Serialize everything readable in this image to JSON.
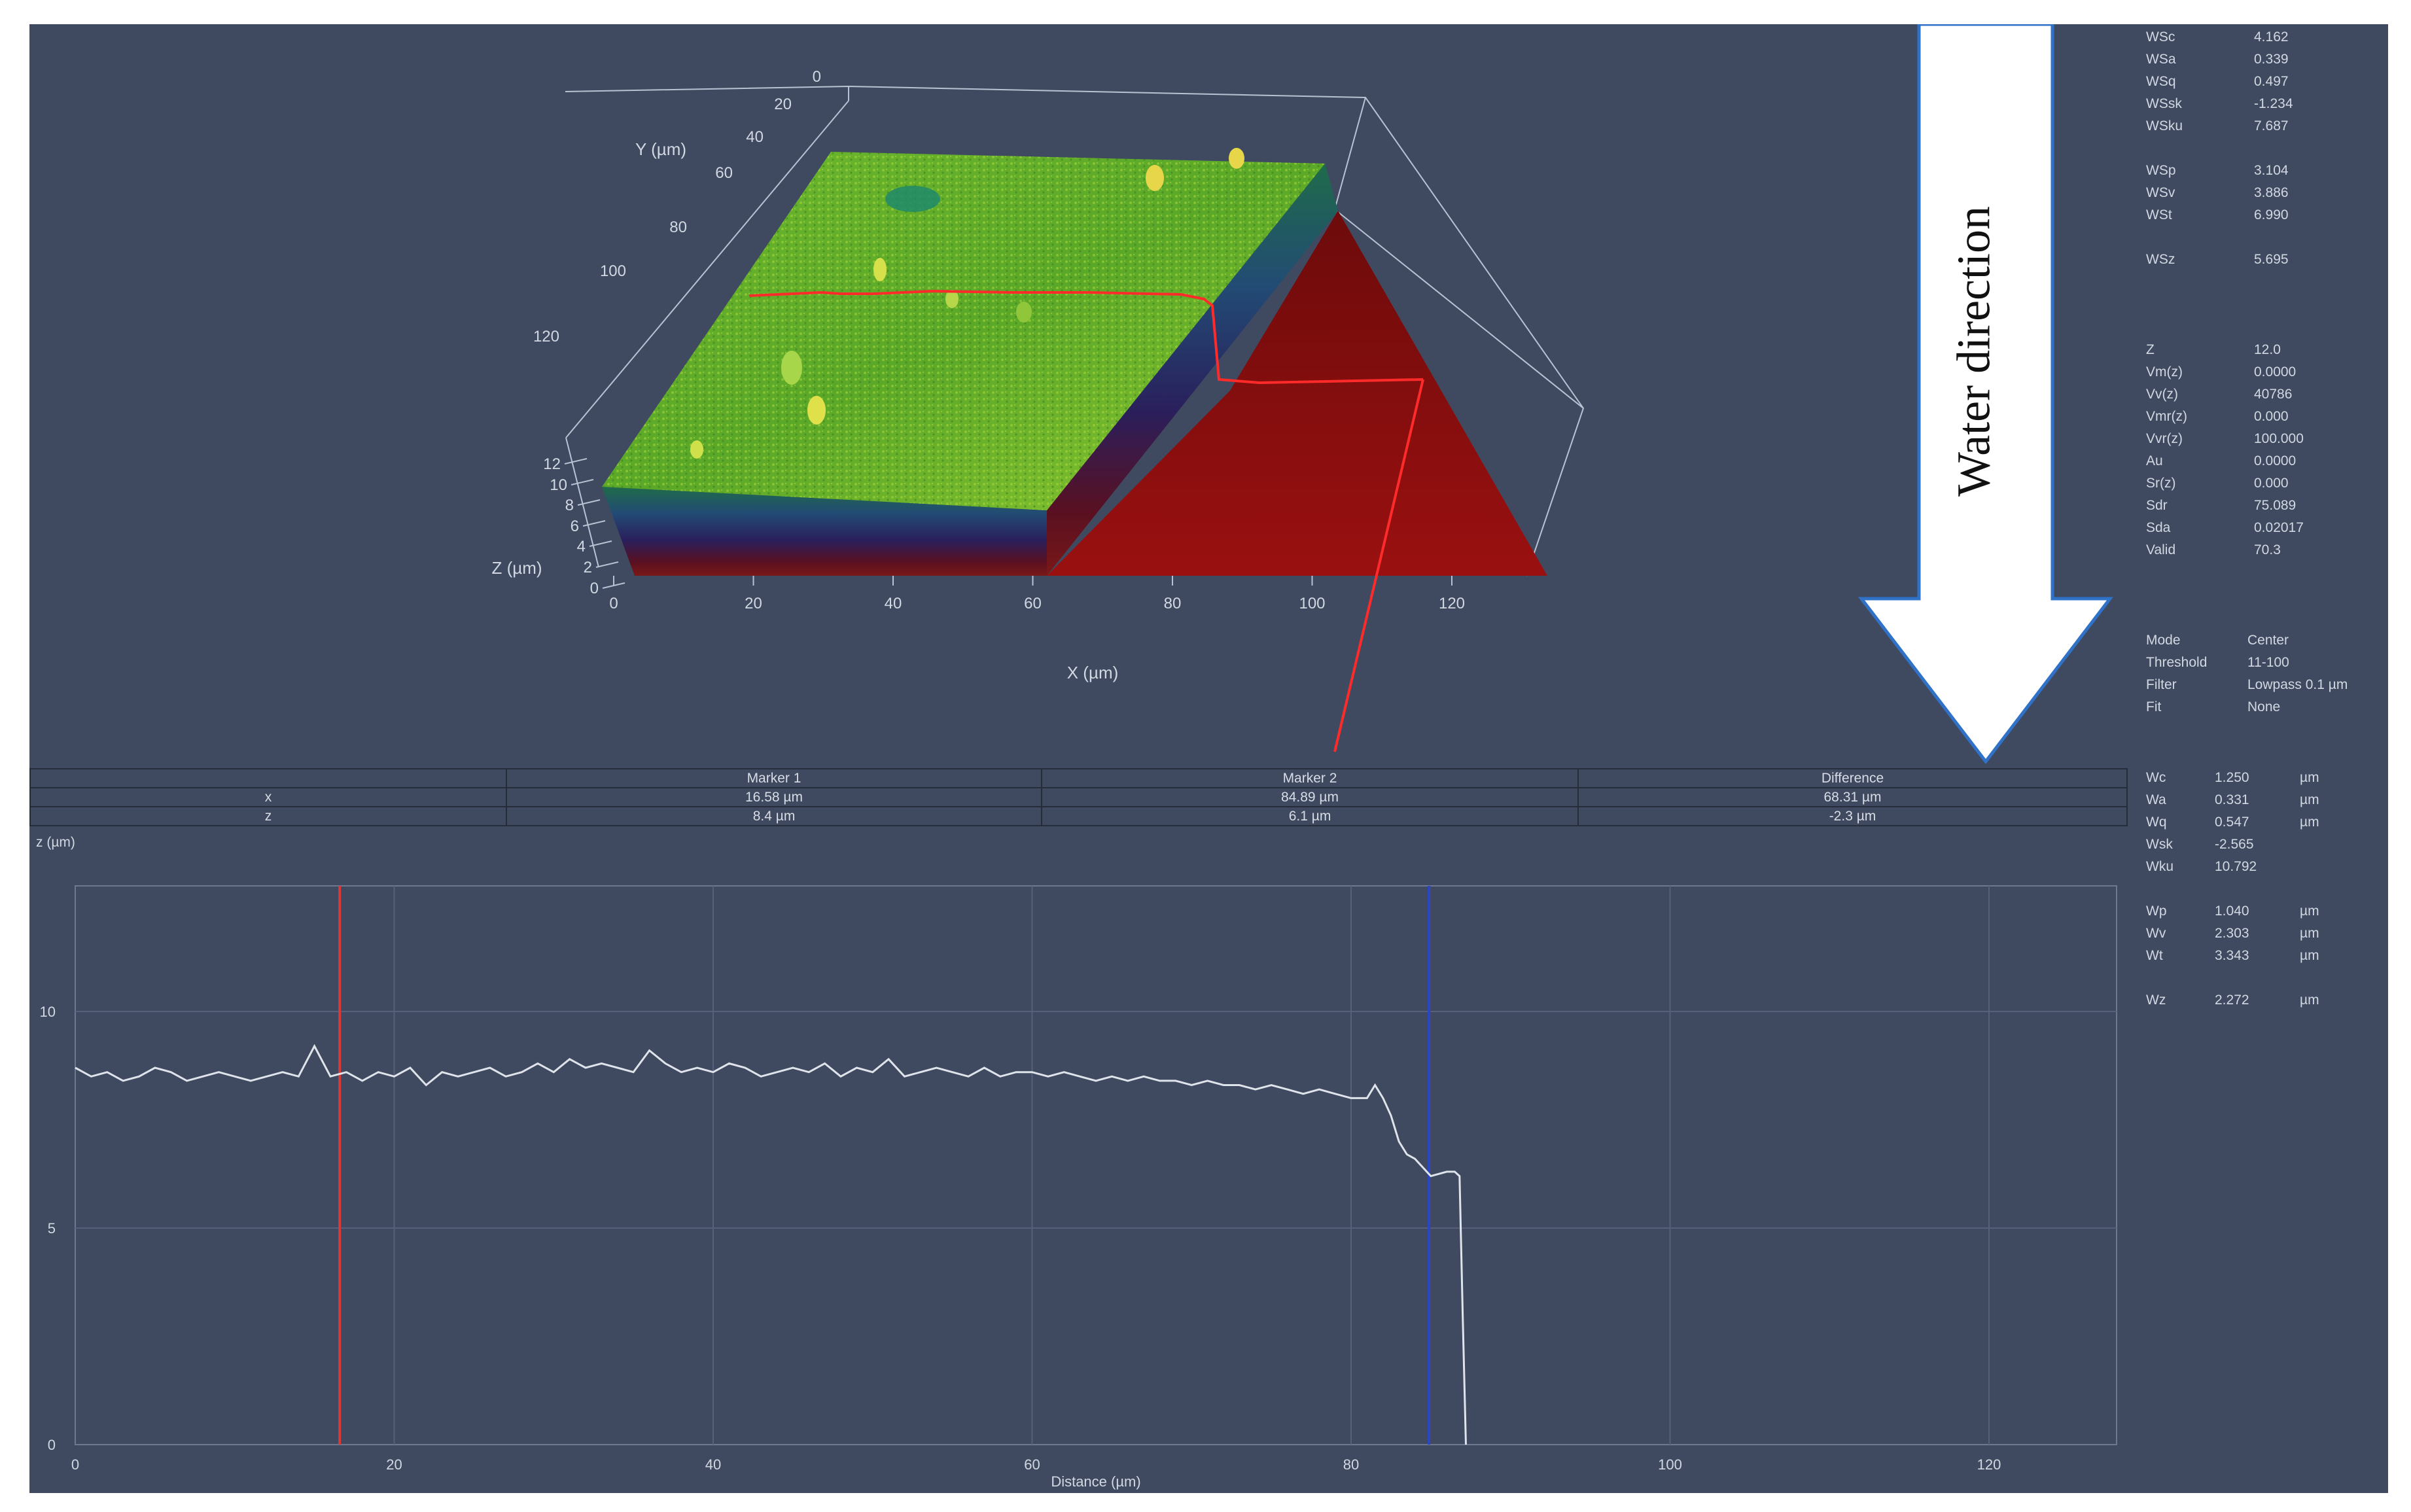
{
  "surface_view": {
    "x_axis_label": "X (µm)",
    "y_axis_label": "Y (µm)",
    "z_axis_label": "Z (µm)",
    "x_ticks": [
      "0",
      "20",
      "40",
      "60",
      "80",
      "100",
      "120"
    ],
    "y_ticks": [
      "0",
      "20",
      "40",
      "60",
      "80",
      "100",
      "120"
    ],
    "z_ticks": [
      "0",
      "2",
      "4",
      "6",
      "8",
      "10",
      "12"
    ]
  },
  "arrow_label": "Water direction",
  "stats_area": [
    {
      "name": "WSc",
      "value": "4.162"
    },
    {
      "name": "WSa",
      "value": "0.339"
    },
    {
      "name": "WSq",
      "value": "0.497"
    },
    {
      "name": "WSsk",
      "value": "-1.234"
    },
    {
      "name": "WSku",
      "value": "7.687"
    },
    {
      "name": "WSp",
      "value": "3.104"
    },
    {
      "name": "WSv",
      "value": "3.886"
    },
    {
      "name": "WSt",
      "value": "6.990"
    },
    {
      "name": "WSz",
      "value": "5.695"
    },
    {
      "name": "Z",
      "value": "12.0"
    },
    {
      "name": "Vm(z)",
      "value": "0.0000"
    },
    {
      "name": "Vv(z)",
      "value": "40786"
    },
    {
      "name": "Vmr(z)",
      "value": "0.000"
    },
    {
      "name": "Vvr(z)",
      "value": "100.000"
    },
    {
      "name": "Au",
      "value": "0.0000"
    },
    {
      "name": "Sr(z)",
      "value": "0.000"
    },
    {
      "name": "Sdr",
      "value": "75.089"
    },
    {
      "name": "Sda",
      "value": "0.02017"
    },
    {
      "name": "Valid",
      "value": "70.3"
    },
    {
      "name": "Mode",
      "value": "Center"
    },
    {
      "name": "Threshold",
      "value": "11-100"
    },
    {
      "name": "Filter",
      "value": "Lowpass 0.1 µm"
    },
    {
      "name": "Fit",
      "value": "None"
    }
  ],
  "stats_profile": [
    {
      "name": "Wc",
      "value": "1.250",
      "unit": "µm"
    },
    {
      "name": "Wa",
      "value": "0.331",
      "unit": "µm"
    },
    {
      "name": "Wq",
      "value": "0.547",
      "unit": "µm"
    },
    {
      "name": "Wsk",
      "value": "-2.565",
      "unit": ""
    },
    {
      "name": "Wku",
      "value": "10.792",
      "unit": ""
    },
    {
      "name": "Wp",
      "value": "1.040",
      "unit": "µm"
    },
    {
      "name": "Wv",
      "value": "2.303",
      "unit": "µm"
    },
    {
      "name": "Wt",
      "value": "3.343",
      "unit": "µm"
    },
    {
      "name": "Wz",
      "value": "2.272",
      "unit": "µm"
    }
  ],
  "marker_table": {
    "headers": [
      "",
      "Marker 1",
      "Marker 2",
      "Difference"
    ],
    "rows": [
      [
        "x",
        "16.58 µm",
        "84.89 µm",
        "68.31 µm"
      ],
      [
        "z",
        "8.4 µm",
        "6.1 µm",
        "-2.3 µm"
      ]
    ]
  },
  "chart_data": {
    "type": "line",
    "xlabel": "Distance (µm)",
    "ylabel": "z (µm)",
    "xlim": [
      0,
      128
    ],
    "ylim": [
      0,
      12.9
    ],
    "x_ticks": [
      0,
      20,
      40,
      60,
      80,
      100,
      120
    ],
    "y_ticks": [
      0,
      5,
      10
    ],
    "grid": true,
    "markers": [
      {
        "name": "Marker 1",
        "x": 16.58,
        "color": "#d63a3a"
      },
      {
        "name": "Marker 2",
        "x": 84.89,
        "color": "#2b45c8"
      }
    ],
    "series": [
      {
        "color": "#dfe3ea",
        "x": [
          0,
          1,
          2,
          3,
          4,
          5,
          6,
          7,
          8,
          9,
          10,
          11,
          12,
          13,
          14,
          15,
          16,
          17,
          18,
          19,
          20,
          21,
          22,
          23,
          24,
          25,
          26,
          27,
          28,
          29,
          30,
          31,
          32,
          33,
          34,
          35,
          36,
          37,
          38,
          39,
          40,
          41,
          42,
          43,
          44,
          45,
          46,
          47,
          48,
          49,
          50,
          51,
          52,
          53,
          54,
          55,
          56,
          57,
          58,
          59,
          60,
          61,
          62,
          63,
          64,
          65,
          66,
          67,
          68,
          69,
          70,
          71,
          72,
          73,
          74,
          75,
          76,
          77,
          78,
          79,
          80,
          81,
          81.5,
          82,
          82.5,
          83,
          83.5,
          84,
          85,
          86,
          86.5,
          86.8,
          87,
          87.2
        ],
        "values": [
          8.7,
          8.5,
          8.6,
          8.4,
          8.5,
          8.7,
          8.6,
          8.4,
          8.5,
          8.6,
          8.5,
          8.4,
          8.5,
          8.6,
          8.5,
          9.2,
          8.5,
          8.6,
          8.4,
          8.6,
          8.5,
          8.7,
          8.3,
          8.6,
          8.5,
          8.6,
          8.7,
          8.5,
          8.6,
          8.8,
          8.6,
          8.9,
          8.7,
          8.8,
          8.7,
          8.6,
          9.1,
          8.8,
          8.6,
          8.7,
          8.6,
          8.8,
          8.7,
          8.5,
          8.6,
          8.7,
          8.6,
          8.8,
          8.5,
          8.7,
          8.6,
          8.9,
          8.5,
          8.6,
          8.7,
          8.6,
          8.5,
          8.7,
          8.5,
          8.6,
          8.6,
          8.5,
          8.6,
          8.5,
          8.4,
          8.5,
          8.4,
          8.5,
          8.4,
          8.4,
          8.3,
          8.4,
          8.3,
          8.3,
          8.2,
          8.3,
          8.2,
          8.1,
          8.2,
          8.1,
          8.0,
          8.0,
          8.3,
          8.0,
          7.6,
          7.0,
          6.7,
          6.6,
          6.2,
          6.3,
          6.3,
          6.2,
          3.0,
          0
        ]
      }
    ]
  }
}
